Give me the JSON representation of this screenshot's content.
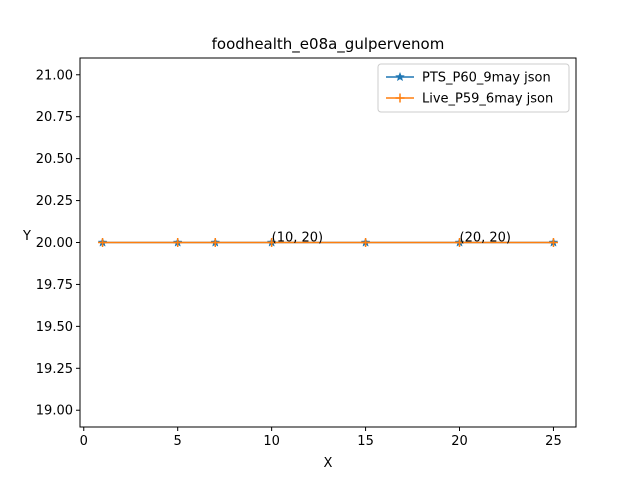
{
  "chart_data": {
    "type": "line",
    "title": "foodhealth_e08a_gulpervenom",
    "xlabel": "X",
    "ylabel": "Y",
    "xlim": [
      -0.2,
      26.2
    ],
    "ylim": [
      18.9,
      21.1
    ],
    "x_ticks": [
      0,
      5,
      10,
      15,
      20,
      25
    ],
    "y_ticks": [
      19.0,
      19.25,
      19.5,
      19.75,
      20.0,
      20.25,
      20.5,
      20.75,
      21.0
    ],
    "grid": false,
    "legend_position": "top-right",
    "series": [
      {
        "name": "PTS_P60_9may json",
        "color": "#1f77b4",
        "marker": "star",
        "x": [
          1,
          5,
          7,
          10,
          15,
          20,
          25
        ],
        "y": [
          20,
          20,
          20,
          20,
          20,
          20,
          20
        ]
      },
      {
        "name": "Live_P59_6may json",
        "color": "#ff7f0e",
        "marker": "plus",
        "x": [
          1,
          5,
          7,
          10,
          15,
          20,
          25
        ],
        "y": [
          20,
          20,
          20,
          20,
          20,
          20,
          20
        ]
      }
    ],
    "annotations": [
      {
        "text": "(10, 20)",
        "x": 10,
        "y": 20
      },
      {
        "text": "(20, 20)",
        "x": 20,
        "y": 20
      }
    ]
  }
}
